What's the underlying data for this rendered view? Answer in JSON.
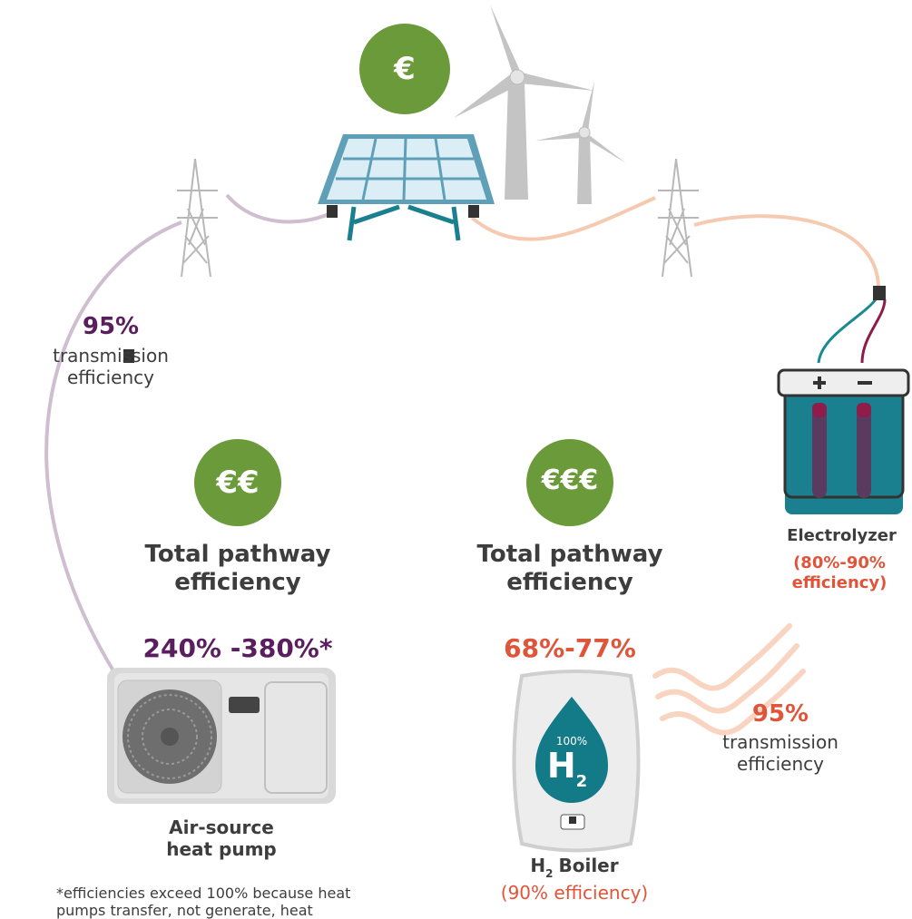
{
  "top_badge": "€",
  "left_transmission": {
    "value": "95%",
    "label": "transmission efficiency"
  },
  "heat_pump_pathway": {
    "badge": "€€",
    "title": "Total pathway efficiency",
    "range": "240% -380%*"
  },
  "hydrogen_pathway": {
    "badge": "€€€",
    "title": "Total pathway efficiency",
    "range": "68%-77%"
  },
  "electrolyzer": {
    "name": "Electrolyzer",
    "efficiency": "(80%-90% efficiency)"
  },
  "right_transmission": {
    "value": "95%",
    "label": "transmission efficiency"
  },
  "drop": {
    "percent": "100%",
    "symbol": "H",
    "subscript": "2"
  },
  "heat_pump": {
    "name": "Air-source heat pump",
    "footnote": "*efficiencies exceed 100% because heat pumps transfer, not generate, heat"
  },
  "boiler": {
    "symbol": "H",
    "subscript": "2",
    "name": "Boiler",
    "efficiency": "(90% efficiency)"
  }
}
